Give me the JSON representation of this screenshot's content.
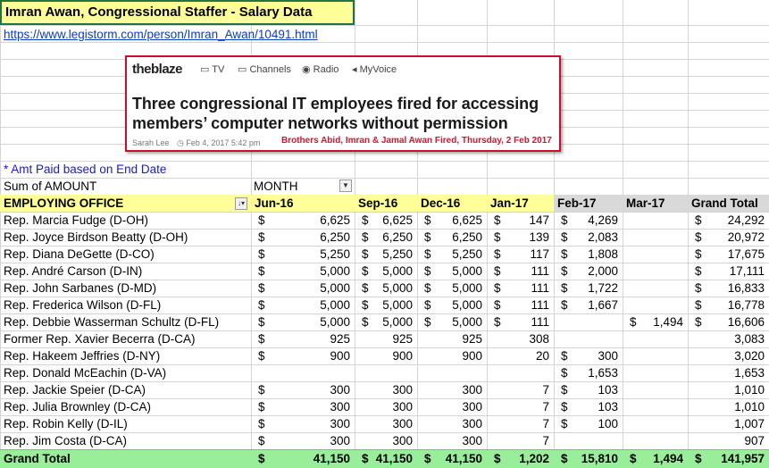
{
  "header": {
    "title": "Imran Awan, Congressional Staffer - Salary Data",
    "link": "https://www.legistorm.com/person/Imran_Awan/10491.html"
  },
  "article": {
    "brand": "theblaze",
    "nav": [
      "TV",
      "Channels",
      "Radio",
      "MyVoice"
    ],
    "headline": [
      "Three congressional IT employees fired for accessing",
      "members’ computer networks without permission"
    ],
    "author": "Sarah Lee",
    "date": "Feb 4, 2017 5:42 pm",
    "caption": "Brothers Abid, Imran  & Jamal Awan Fired, Thursday, 2 Feb 2017"
  },
  "note": "* Amt Paid based on End Date",
  "pivot": {
    "sum_label": "Sum of AMOUNT",
    "column_field": "MONTH",
    "row_field": "EMPLOYING OFFICE",
    "currency_symbol": "$",
    "columns": [
      "Jun-16",
      "Sep-16",
      "Dec-16",
      "Jan-17",
      "Feb-17",
      "Mar-17",
      "Grand Total"
    ],
    "rows": [
      {
        "office": "Rep. Marcia Fudge (D-OH)",
        "values": [
          "6,625",
          "6,625",
          "6,625",
          "147",
          "4,269",
          null,
          "24,292"
        ],
        "dollar": [
          true,
          true,
          true,
          true,
          true,
          false,
          true
        ]
      },
      {
        "office": "Rep. Joyce Birdson Beatty (D-OH)",
        "values": [
          "6,250",
          "6,250",
          "6,250",
          "139",
          "2,083",
          null,
          "20,972"
        ],
        "dollar": [
          true,
          true,
          true,
          true,
          true,
          false,
          true
        ]
      },
      {
        "office": "Rep. Diana DeGette (D-CO)",
        "values": [
          "5,250",
          "5,250",
          "5,250",
          "117",
          "1,808",
          null,
          "17,675"
        ],
        "dollar": [
          true,
          true,
          true,
          true,
          true,
          false,
          true
        ]
      },
      {
        "office": "Rep. André Carson (D-IN)",
        "values": [
          "5,000",
          "5,000",
          "5,000",
          "111",
          "2,000",
          null,
          "17,111"
        ],
        "dollar": [
          true,
          true,
          true,
          true,
          true,
          false,
          true
        ]
      },
      {
        "office": "Rep. John Sarbanes (D-MD)",
        "values": [
          "5,000",
          "5,000",
          "5,000",
          "111",
          "1,722",
          null,
          "16,833"
        ],
        "dollar": [
          true,
          true,
          true,
          true,
          true,
          false,
          true
        ]
      },
      {
        "office": "Rep. Frederica Wilson (D-FL)",
        "values": [
          "5,000",
          "5,000",
          "5,000",
          "111",
          "1,667",
          null,
          "16,778"
        ],
        "dollar": [
          true,
          true,
          true,
          true,
          true,
          false,
          true
        ]
      },
      {
        "office": "Rep. Debbie Wasserman Schultz (D-FL)",
        "values": [
          "5,000",
          "5,000",
          "5,000",
          "111",
          null,
          "1,494",
          "16,606"
        ],
        "dollar": [
          true,
          true,
          true,
          true,
          false,
          true,
          true
        ]
      },
      {
        "office": "Former Rep. Xavier Becerra (D-CA)",
        "values": [
          "925",
          "925",
          "925",
          "308",
          null,
          null,
          "3,083"
        ],
        "dollar": [
          true,
          false,
          false,
          false,
          false,
          false,
          false
        ]
      },
      {
        "office": "Rep. Hakeem Jeffries (D-NY)",
        "values": [
          "900",
          "900",
          "900",
          "20",
          "300",
          null,
          "3,020"
        ],
        "dollar": [
          true,
          false,
          false,
          false,
          true,
          false,
          false
        ]
      },
      {
        "office": "Rep. Donald McEachin (D-VA)",
        "values": [
          null,
          null,
          null,
          null,
          "1,653",
          null,
          "1,653"
        ],
        "dollar": [
          false,
          false,
          false,
          false,
          true,
          false,
          false
        ]
      },
      {
        "office": "Rep. Jackie Speier (D-CA)",
        "values": [
          "300",
          "300",
          "300",
          "7",
          "103",
          null,
          "1,010"
        ],
        "dollar": [
          true,
          false,
          false,
          false,
          true,
          false,
          false
        ]
      },
      {
        "office": "Rep. Julia Brownley (D-CA)",
        "values": [
          "300",
          "300",
          "300",
          "7",
          "103",
          null,
          "1,010"
        ],
        "dollar": [
          true,
          false,
          false,
          false,
          true,
          false,
          false
        ]
      },
      {
        "office": "Rep. Robin Kelly (D-IL)",
        "values": [
          "300",
          "300",
          "300",
          "7",
          "100",
          null,
          "1,007"
        ],
        "dollar": [
          true,
          false,
          false,
          false,
          true,
          false,
          false
        ]
      },
      {
        "office": "Rep. Jim Costa (D-CA)",
        "values": [
          "300",
          "300",
          "300",
          "7",
          null,
          null,
          "907"
        ],
        "dollar": [
          true,
          false,
          false,
          false,
          false,
          false,
          false
        ]
      }
    ],
    "total": {
      "label": "Grand Total",
      "values": [
        "41,150",
        "41,150",
        "41,150",
        "1,202",
        "15,810",
        "1,494",
        "141,957"
      ],
      "dollar": [
        true,
        true,
        true,
        true,
        true,
        true,
        true
      ]
    }
  }
}
